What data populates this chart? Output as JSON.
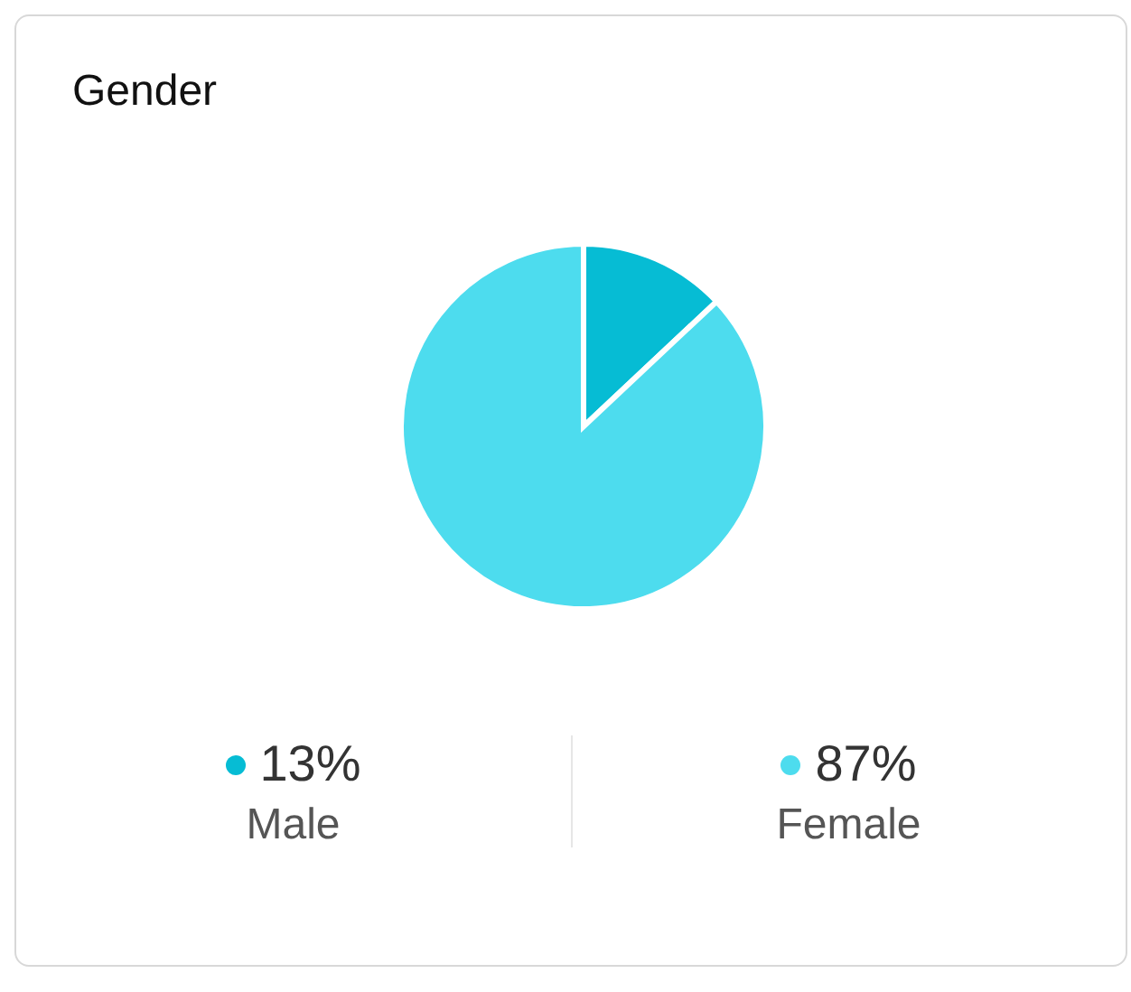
{
  "chart_data": {
    "type": "pie",
    "title": "Gender",
    "categories": [
      "Male",
      "Female"
    ],
    "values": [
      13,
      87
    ],
    "value_labels": [
      "13%",
      "87%"
    ],
    "colors": [
      "#06bcd4",
      "#4ddcee"
    ],
    "legend": "bottom"
  }
}
